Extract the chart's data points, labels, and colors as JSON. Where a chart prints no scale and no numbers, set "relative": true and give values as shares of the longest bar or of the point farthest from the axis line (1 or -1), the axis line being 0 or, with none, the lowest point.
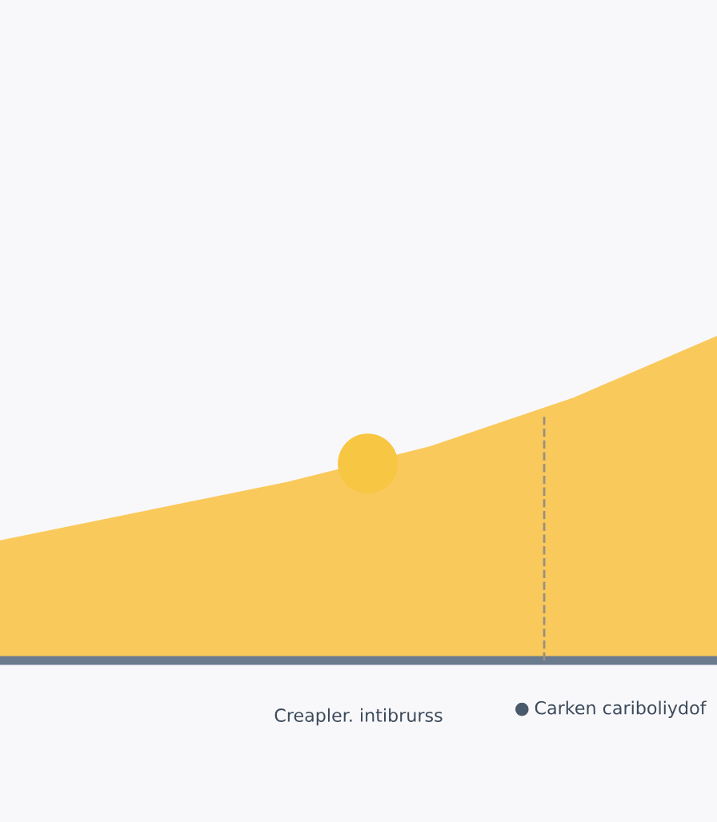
{
  "chart_data": {
    "type": "area",
    "relative": true,
    "categories": [
      null,
      null,
      null,
      null,
      null,
      null
    ],
    "series": [
      {
        "color": "#f9c95c",
        "values": [
          0.37,
          0.46,
          0.55,
          0.66,
          0.81,
          1
        ]
      }
    ],
    "xlabel": "Creapler. intibrurss",
    "annotations": [
      "Carken cariboliydof"
    ],
    "grid": false,
    "legend": false
  }
}
